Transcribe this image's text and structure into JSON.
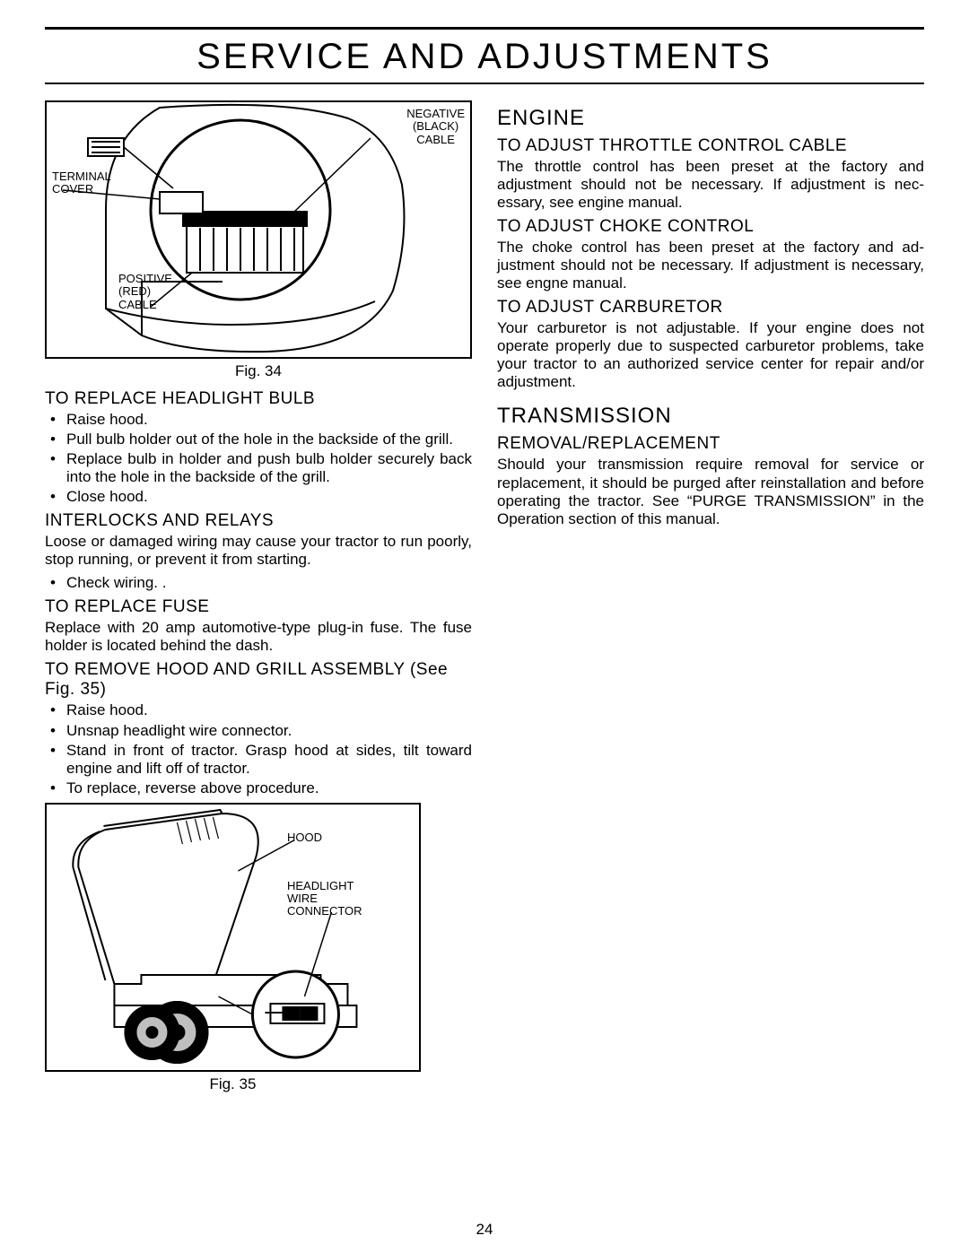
{
  "page_title": "SERVICE AND ADJUSTMENTS",
  "page_number": "24",
  "fig34": {
    "caption": "Fig. 34",
    "labels": {
      "negative": "NEGATIVE\n(BLACK)\nCABLE",
      "terminal": "TERMINAL\nCOVER",
      "positive": "POSITIVE\n(RED)\nCABLE"
    }
  },
  "fig35": {
    "caption": "Fig. 35",
    "labels": {
      "hood": "HOOD",
      "connector": "HEADLIGHT\nWIRE\nCONNECTOR"
    }
  },
  "left": {
    "headlight_heading": "TO REPLACE HEADLIGHT BULB",
    "headlight_items": [
      "Raise hood.",
      "Pull bulb holder out of the hole in the backside of the grill.",
      "Replace bulb in holder and push bulb holder securely back into the hole in the backside of the grill.",
      "Close hood."
    ],
    "interlocks_heading": "INTERLOCKS AND RELAYS",
    "interlocks_body": "Loose or damaged wiring may cause your tractor to run poorly, stop running, or prevent it from starting.",
    "interlocks_items": [
      "Check wiring. ."
    ],
    "fuse_heading": "TO REPLACE FUSE",
    "fuse_body": "Replace with 20 amp automotive-type plug-in fuse.  The fuse holder is located behind the dash.",
    "hood_heading": "TO REMOVE HOOD AND GRILL ASSEMBLY (See Fig. 35)",
    "hood_items": [
      "Raise hood.",
      "Unsnap headlight wire connector.",
      "Stand in front of tractor.  Grasp hood at sides, tilt toward engine and lift off of tractor.",
      "To replace, reverse above procedure."
    ]
  },
  "right": {
    "engine_heading": "ENGINE",
    "throttle_heading": "TO ADJUST THROTTLE CONTROL CABLE",
    "throttle_body": "The throttle control has been preset at the factory and adjustment should not be necessary. If adjustment is nec­essary, see engine manual.",
    "choke_heading": "TO ADJUST CHOKE CONTROL",
    "choke_body": "The choke control has been preset at the factory and ad­justment should not be necessary. If adjustment is neces­sary, see engne manual.",
    "carb_heading": "TO ADJUST CARBURETOR",
    "carb_body": "Your carburetor is not adjustable. If your engine does not operate properly due to suspected carburetor problems, take your tractor to an authorized service center for repair and/or adjustment.",
    "trans_heading": "TRANSMISSION",
    "removal_heading": "REMOVAL/REPLACEMENT",
    "removal_body": "Should your transmission require removal for service or replacement, it should be purged after reinstallation and before operating the tractor.  See “PURGE TRANSMISSION” in the Operation section of this manual."
  }
}
